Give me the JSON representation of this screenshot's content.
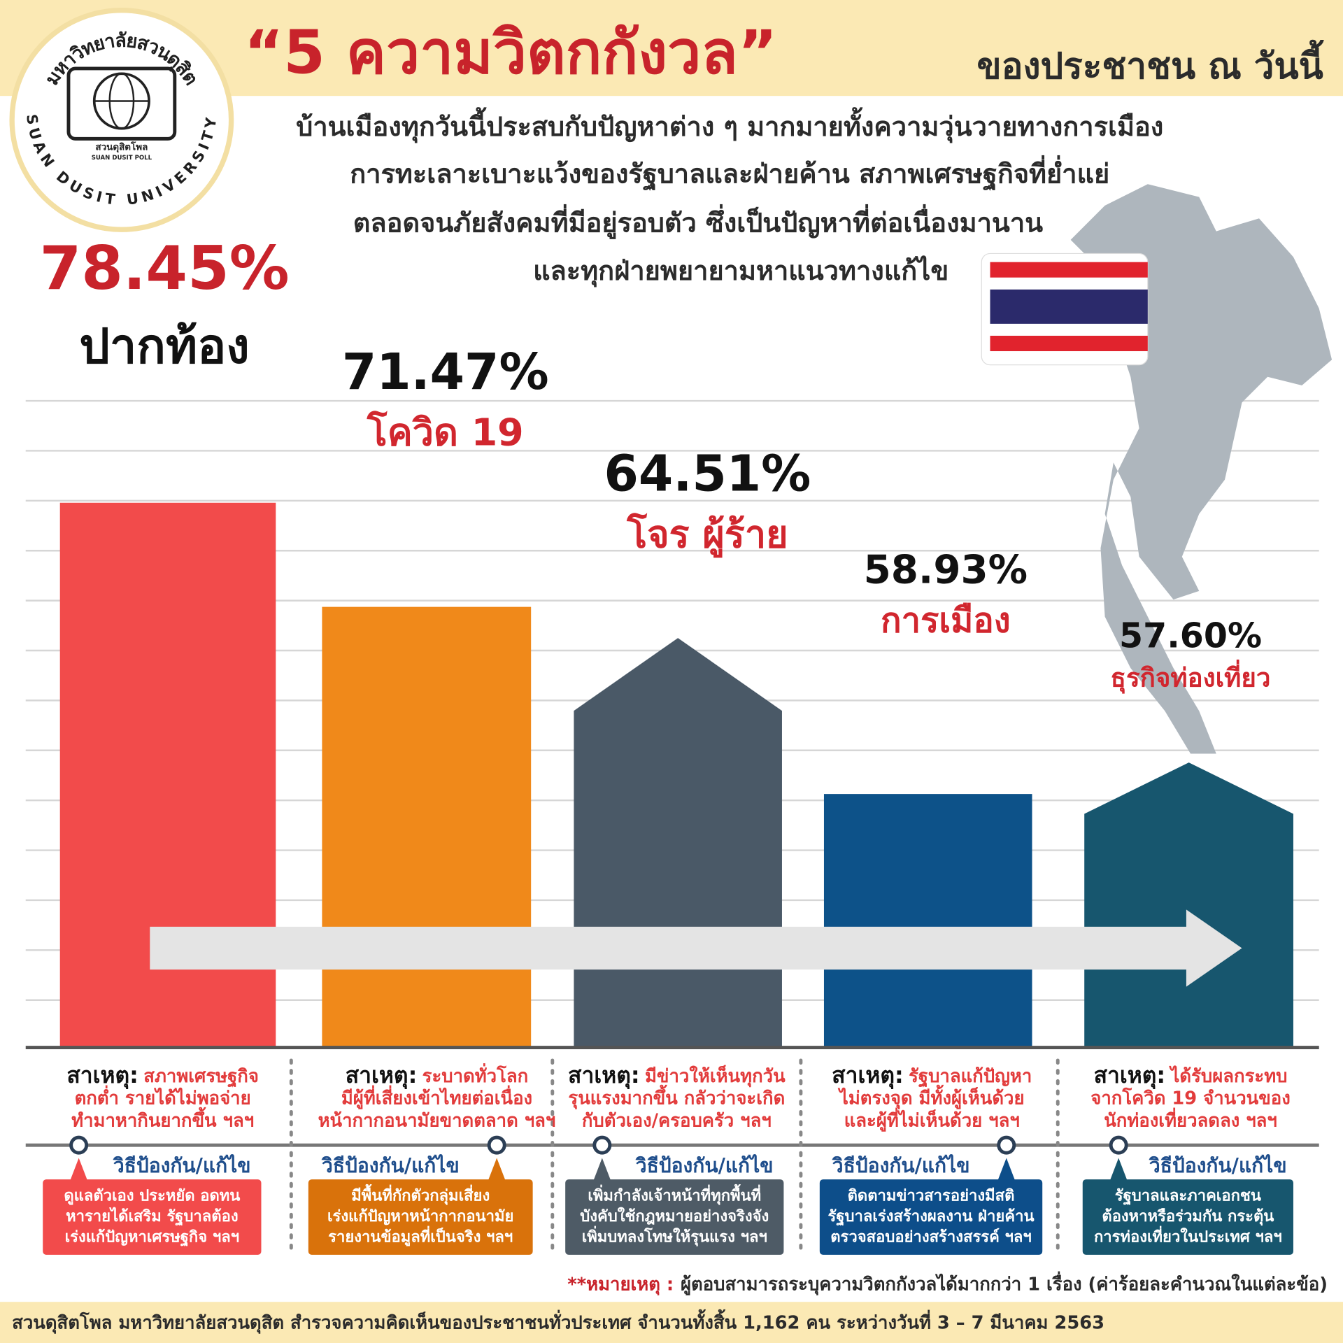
{
  "header": {
    "title": "“5 ความวิตกกังวล”",
    "title_suffix": "ของประชาชน ณ วันนี้",
    "intro": [
      "บ้านเมืองทุกวันนี้ประสบกับปัญหาต่าง ๆ มากมายทั้งความวุ่นวายทางการเมือง",
      "การทะเลาะเบาะแว้งของรัฐบาลและฝ่ายค้าน สภาพเศรษฐกิจที่ย่ำแย่",
      "ตลอดจนภัยสังคมที่มีอยู่รอบตัว ซึ่งเป็นปัญหาที่ต่อเนื่องมานาน",
      "และทุกฝ่ายพยายามหาแนวทางแก้ไข"
    ]
  },
  "logo": {
    "name_th": "มหาวิทยาลัยสวนดุสิต",
    "name_en": "SUAN DUSIT UNIVERSITY",
    "poll_th": "สวนดุสิตโพล",
    "poll_en": "SUAN DUSIT POLL"
  },
  "chart_data": {
    "type": "bar",
    "categories": [
      "ปากท้อง",
      "โควิด 19",
      "โจร ผู้ร้าย",
      "การเมือง",
      "ธุรกิจท่องเที่ยว"
    ],
    "values": [
      78.45,
      71.47,
      64.51,
      58.93,
      57.6
    ],
    "value_labels": [
      "78.45%",
      "71.47%",
      "64.51%",
      "58.93%",
      "57.60%"
    ],
    "colors": [
      "#f24b4b",
      "#f0891a",
      "#4a5967",
      "#0d5289",
      "#17566e"
    ],
    "ylim": [
      42,
      80
    ]
  },
  "cause_label": "สาเหตุ:",
  "solution_label": "วิธีป้องกัน/แก้ไข",
  "details": [
    {
      "cause": [
        "สภาพเศรษฐกิจ",
        "ตกต่ำ รายได้ไม่พอจ่าย",
        "ทำมาหากินยากขึ้น ฯลฯ"
      ],
      "solution": [
        "ดูแลตัวเอง ประหยัด อดทน",
        "หารายได้เสริม รัฐบาลต้อง",
        "เร่งแก้ปัญหาเศรษฐกิจ ฯลฯ"
      ]
    },
    {
      "cause": [
        "ระบาดทั่วโลก",
        "มีผู้ที่เสี่ยงเข้าไทยต่อเนื่อง",
        "หน้ากากอนามัยขาดตลาด ฯลฯ"
      ],
      "solution": [
        "มีพื้นที่กักตัวกลุ่มเสี่ยง",
        "เร่งแก้ปัญหาหน้ากากอนามัย",
        "รายงานข้อมูลที่เป็นจริง ฯลฯ"
      ]
    },
    {
      "cause": [
        "มีข่าวให้เห็นทุกวัน",
        "รุนแรงมากขึ้น กลัวว่าจะเกิด",
        "กับตัวเอง/ครอบครัว ฯลฯ"
      ],
      "solution": [
        "เพิ่มกำลังเจ้าหน้าที่ทุกพื้นที่",
        "บังคับใช้กฎหมายอย่างจริงจัง",
        "เพิ่มบทลงโทษให้รุนแรง ฯลฯ"
      ]
    },
    {
      "cause": [
        "รัฐบาลแก้ปัญหา",
        "ไม่ตรงจุด มีทั้งผู้เห็นด้วย",
        "และผู้ที่ไม่เห็นด้วย ฯลฯ"
      ],
      "solution": [
        "ติดตามข่าวสารอย่างมีสติ",
        "รัฐบาลเร่งสร้างผลงาน ฝ่ายค้าน",
        "ตรวจสอบอย่างสร้างสรรค์ ฯลฯ"
      ]
    },
    {
      "cause": [
        "ได้รับผลกระทบ",
        "จากโควิด 19  จำนวนของ",
        "นักท่องเที่ยวลดลง ฯลฯ"
      ],
      "solution": [
        "รัฐบาลและภาคเอกชน",
        "ต้องหาหรือร่วมกัน กระตุ้น",
        "การท่องเที่ยวในประเทศ ฯลฯ"
      ]
    }
  ],
  "note": {
    "label": "**หมายเหตุ :",
    "text": "ผู้ตอบสามารถระบุความวิตกกังวลได้มากกว่า 1 เรื่อง (ค่าร้อยละคำนวณในแต่ละข้อ)"
  },
  "footer": "สวนดุสิตโพล มหาวิทยาลัยสวนดุสิต สำรวจความคิดเห็นของประชาชนทั่วประเทศ จำนวนทั้งสิ้น 1,162 คน ระหว่างวันที่ 3 – 7 มีนาคม 2563"
}
